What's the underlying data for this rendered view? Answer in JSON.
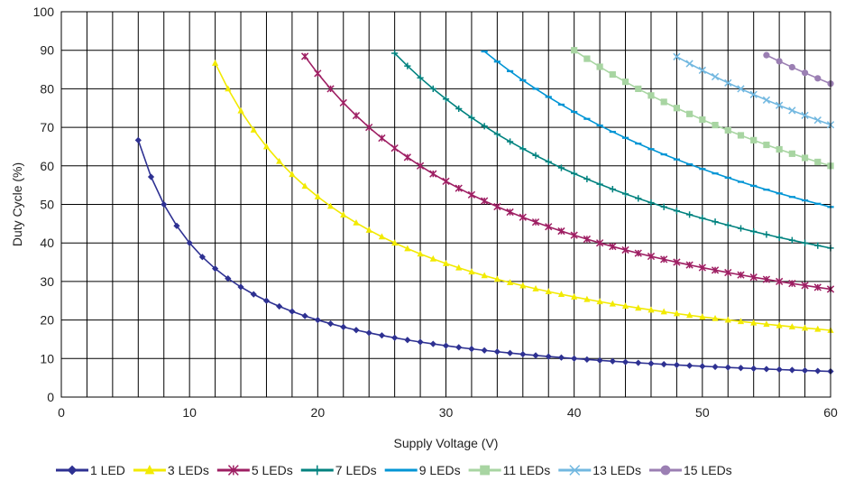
{
  "chart_data": {
    "type": "line",
    "title": "",
    "xlabel": "Supply Voltage (V)",
    "ylabel": "Duty Cycle (%)",
    "xlim": [
      0,
      60
    ],
    "ylim": [
      0,
      100
    ],
    "xticks": [
      "0",
      "10",
      "20",
      "30",
      "40",
      "50",
      "60"
    ],
    "yticks": [
      "0",
      "10",
      "20",
      "30",
      "40",
      "50",
      "60",
      "70",
      "80",
      "90",
      "100"
    ],
    "grid": true,
    "legend": "bottom",
    "series": [
      {
        "name": "1 LED",
        "color": "#2e3192",
        "marker": "diamond",
        "nleds": 1,
        "x_start": 6
      },
      {
        "name": "3 LEDs",
        "color": "#f2ea00",
        "marker": "triangle",
        "nleds": 3,
        "x_start": 12
      },
      {
        "name": "5 LEDs",
        "color": "#9e1f63",
        "marker": "star",
        "nleds": 5,
        "x_start": 19
      },
      {
        "name": "7 LEDs",
        "color": "#00827f",
        "marker": "plus",
        "nleds": 7,
        "x_start": 26
      },
      {
        "name": "9 LEDs",
        "color": "#0095d5",
        "marker": "dash",
        "nleds": 9,
        "x_start": 33
      },
      {
        "name": "11 LEDs",
        "color": "#a8d5a2",
        "marker": "square",
        "nleds": 11,
        "x_start": 40
      },
      {
        "name": "13 LEDs",
        "color": "#72b8e0",
        "marker": "cross",
        "nleds": 13,
        "x_start": 48
      },
      {
        "name": "15 LEDs",
        "color": "#9b7fb3",
        "marker": "circle",
        "nleds": 15,
        "x_start": 55
      }
    ]
  }
}
